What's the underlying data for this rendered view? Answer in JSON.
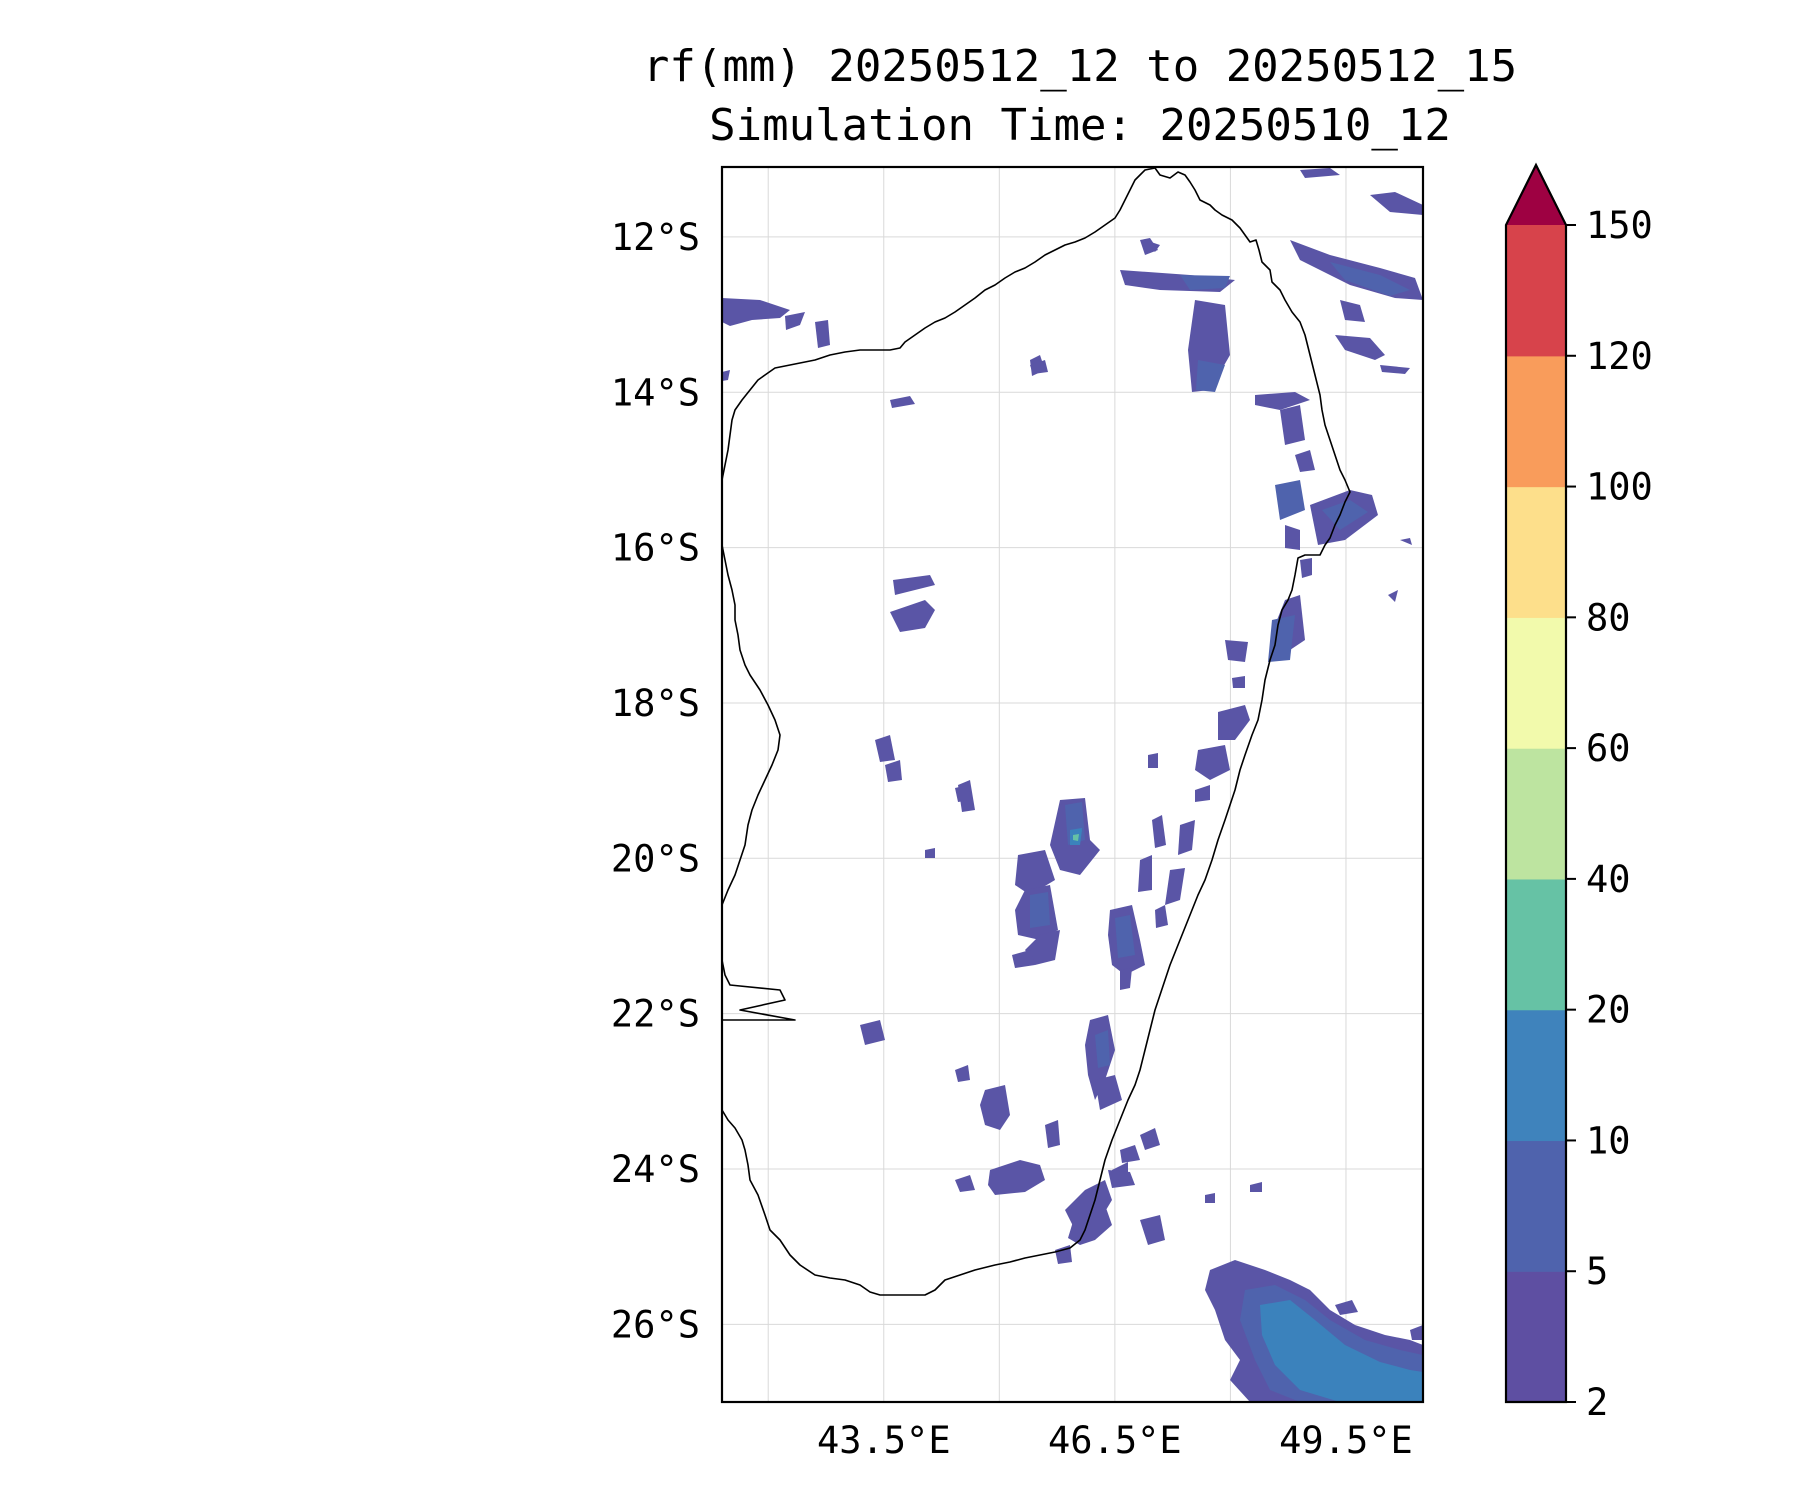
{
  "title": {
    "line1": "rf(mm) 20250512_12 to 20250512_15",
    "line2": "Simulation Time: 20250510_12"
  },
  "map": {
    "lon_range": [
      41.4,
      50.5
    ],
    "lat_range": [
      -27.0,
      -11.1
    ],
    "lon_ticks": [
      {
        "value": 43.5,
        "label": "43.5°E"
      },
      {
        "value": 46.5,
        "label": "46.5°E"
      },
      {
        "value": 49.5,
        "label": "49.5°E"
      }
    ],
    "lat_ticks": [
      {
        "value": -12,
        "label": "12°S"
      },
      {
        "value": -14,
        "label": "14°S"
      },
      {
        "value": -16,
        "label": "16°S"
      },
      {
        "value": -18,
        "label": "18°S"
      },
      {
        "value": -20,
        "label": "20°S"
      },
      {
        "value": -22,
        "label": "22°S"
      },
      {
        "value": -24,
        "label": "24°S"
      },
      {
        "value": -26,
        "label": "26°S"
      }
    ],
    "grid_lon": [
      42.0,
      43.5,
      45.0,
      46.5,
      48.0,
      49.5
    ],
    "grid": true
  },
  "colorbar": {
    "extend": "max",
    "extend_color": "#9e0142",
    "levels": [
      "2",
      "5",
      "10",
      "20",
      "40",
      "60",
      "80",
      "100",
      "120",
      "150"
    ],
    "colors": [
      "#5e4fa2",
      "#4f63ad",
      "#3f83bc",
      "#66c2a5",
      "#bde4a0",
      "#f2faac",
      "#fddf8b",
      "#f99c5b",
      "#d7434b"
    ]
  }
}
